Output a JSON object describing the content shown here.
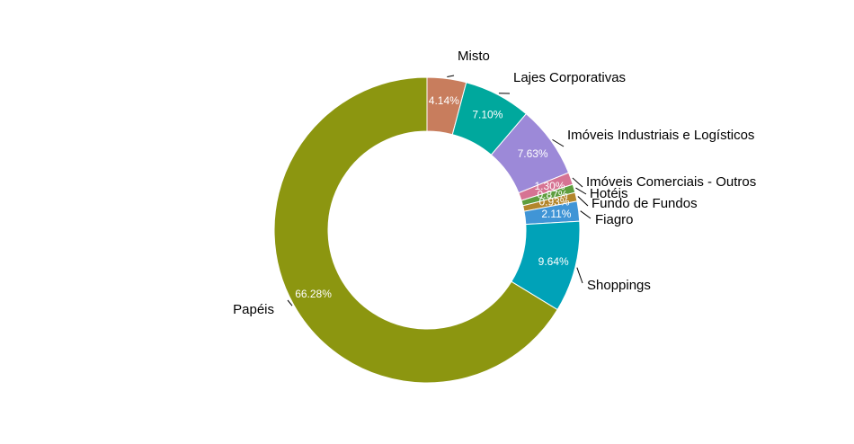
{
  "chart_data": {
    "type": "pie",
    "variant": "donut",
    "start": "top",
    "direction": "clockwise",
    "slices": [
      {
        "label": "Misto",
        "value": 4.14,
        "pct_label": "4.14%",
        "color": "#C87D5D"
      },
      {
        "label": "Lajes Corporativas",
        "value": 7.1,
        "pct_label": "7.10%",
        "color": "#00A89D"
      },
      {
        "label": "Imóveis Industriais e Logísticos",
        "value": 7.63,
        "pct_label": "7.63%",
        "color": "#9C89D8"
      },
      {
        "label": "Imóveis Comerciais - Outros",
        "value": 1.3,
        "pct_label": "1.30%",
        "color": "#D67393"
      },
      {
        "label": "Hotéis",
        "value": 0.87,
        "pct_label": "0.87%",
        "color": "#5E9E3E"
      },
      {
        "label": "Fundo de Fundos",
        "value": 0.93,
        "pct_label": "0.93%",
        "color": "#B3862C"
      },
      {
        "label": "Fiagro",
        "value": 2.11,
        "pct_label": "2.11%",
        "color": "#4095D6"
      },
      {
        "label": "Shoppings",
        "value": 9.64,
        "pct_label": "9.64%",
        "color": "#00A2B8"
      },
      {
        "label": "Papéis",
        "value": 66.28,
        "pct_label": "66.28%",
        "color": "#8C9610"
      }
    ]
  }
}
